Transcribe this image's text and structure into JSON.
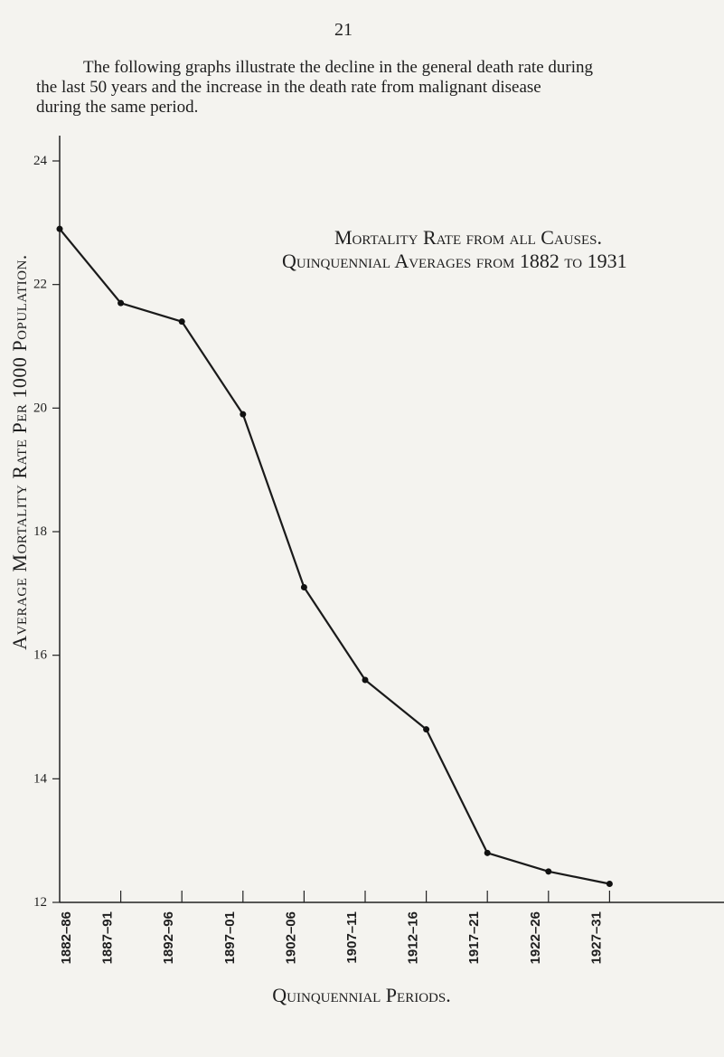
{
  "page": {
    "number": "21",
    "intro_lines": [
      "The following graphs illustrate the decline in the general death rate during",
      "the last 50 years and the increase in the death rate from malignant disease",
      "during the same period."
    ]
  },
  "chart_data": {
    "type": "line",
    "title": "Mortality Rate from all Causes.",
    "subtitle": "Quinquennial Averages from 1882 to 1931",
    "xlabel": "Quinquennial Periods.",
    "ylabel": "Average Mortality Rate Per 1000 Population.",
    "categories": [
      "1882–86",
      "1887–91",
      "1892–96",
      "1897–01",
      "1902–06",
      "1907–11",
      "1912–16",
      "1917–21",
      "1922–26",
      "1927–31"
    ],
    "values": [
      22.9,
      21.7,
      21.4,
      19.9,
      17.1,
      15.6,
      14.8,
      12.8,
      12.5,
      12.3
    ],
    "y_axis_min": 12,
    "y_ticks": [
      24,
      22,
      20,
      18,
      16,
      14,
      12
    ],
    "ylim": [
      12,
      24
    ],
    "grid": false,
    "legend": "none"
  }
}
